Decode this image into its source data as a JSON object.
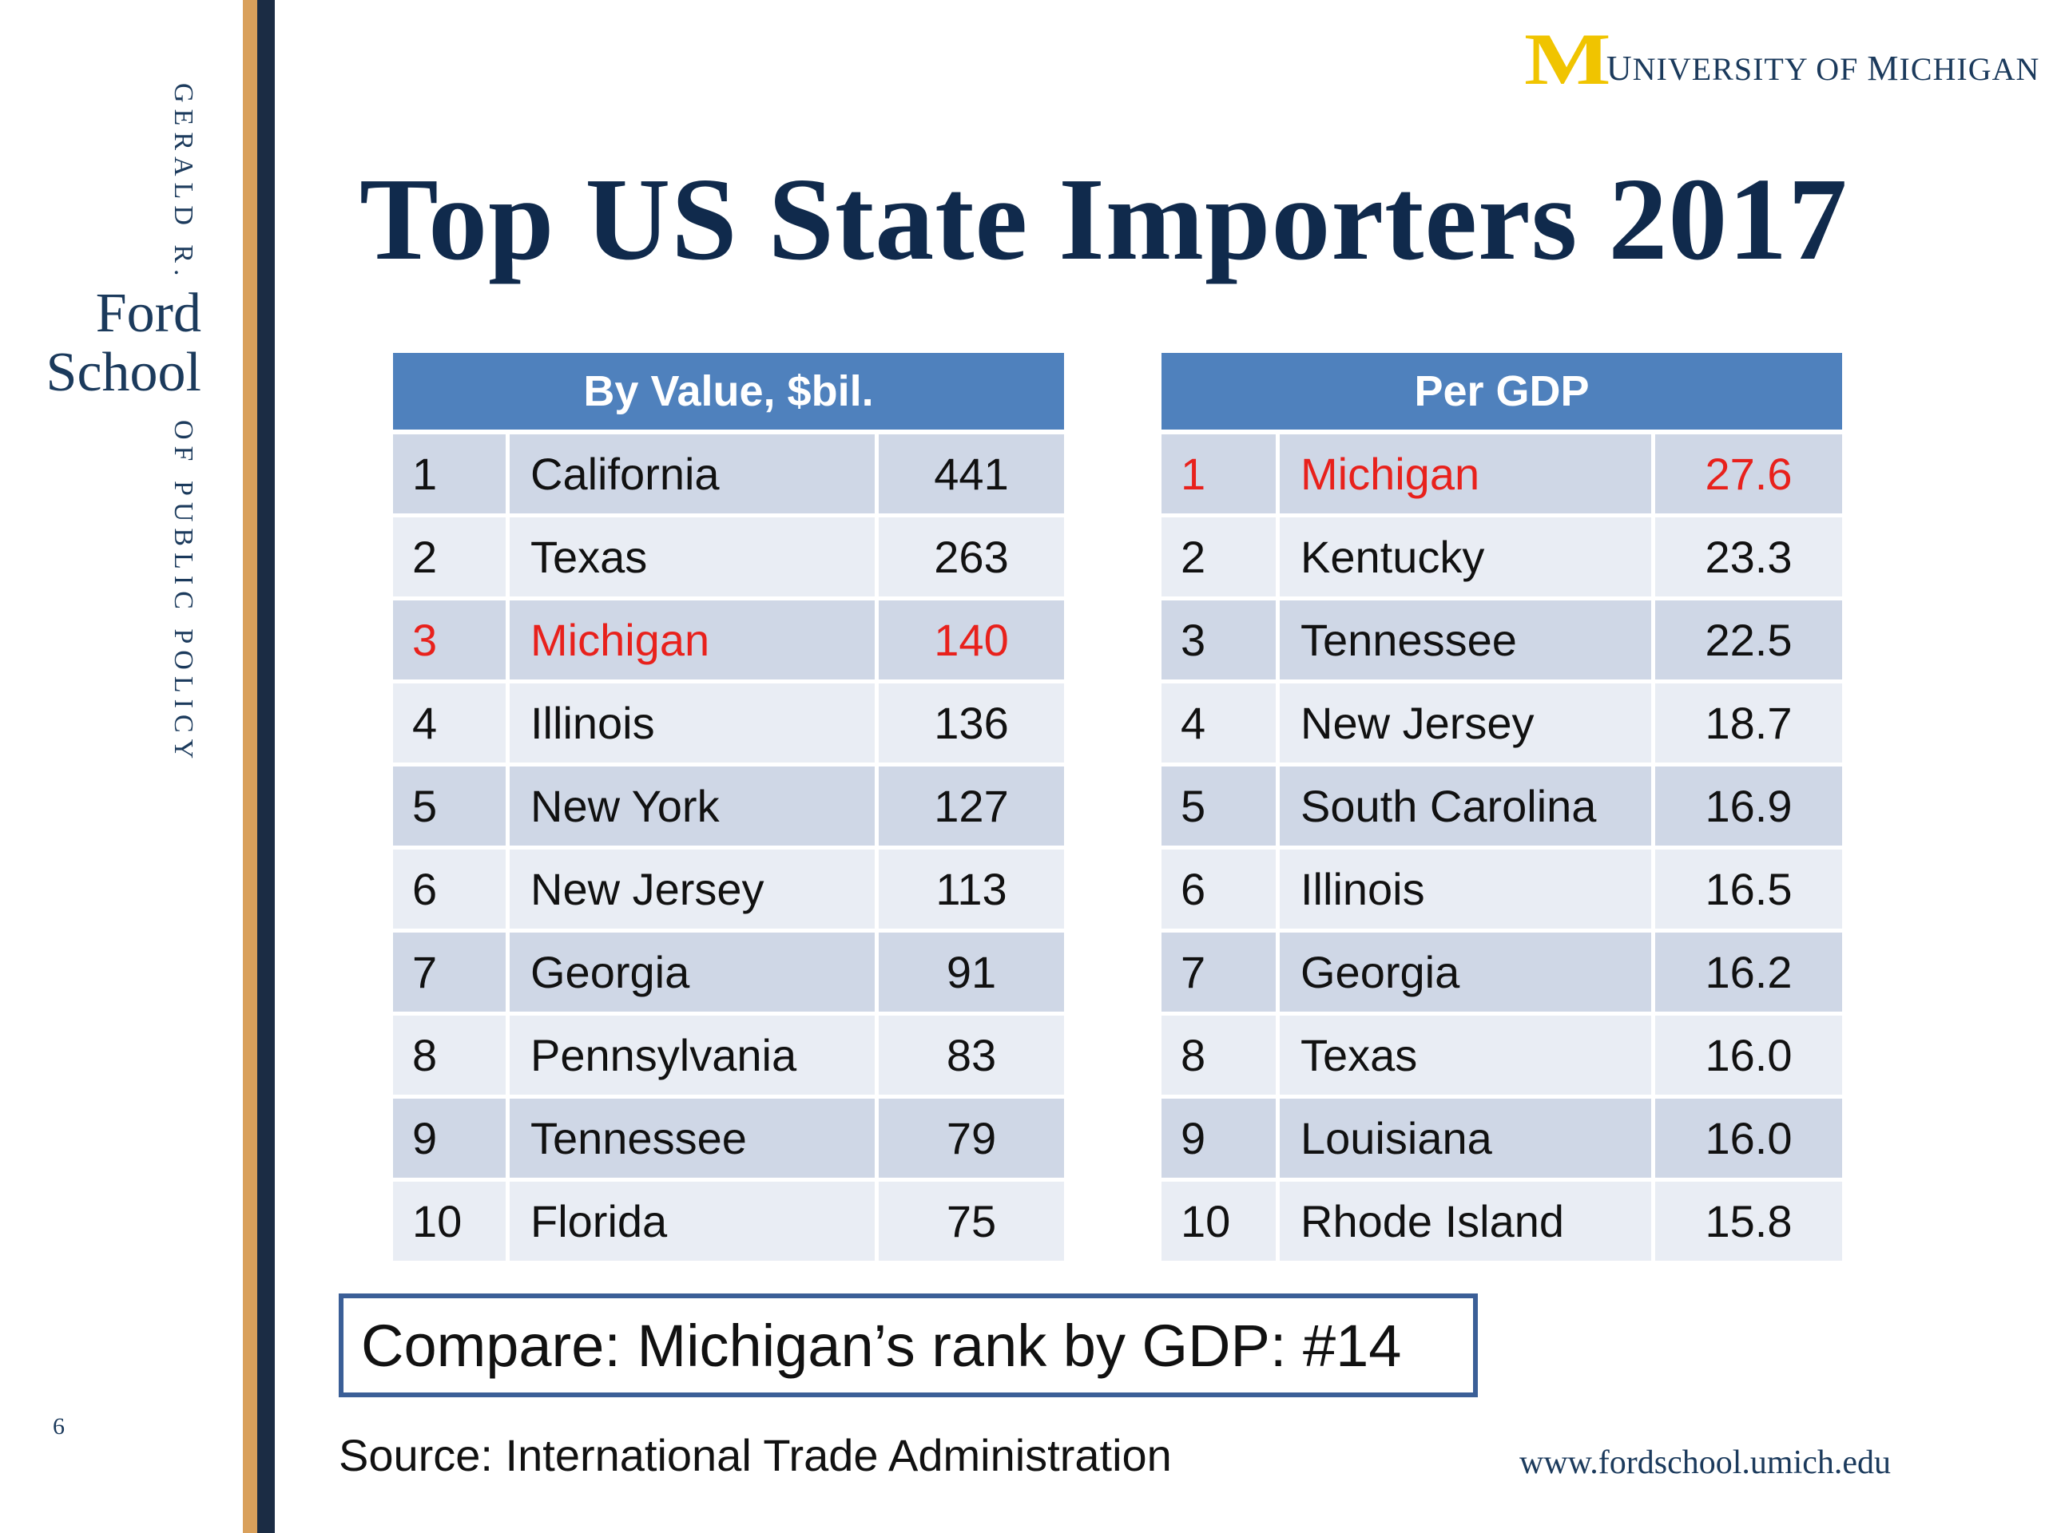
{
  "branding": {
    "vertical_top": "GERALD R.",
    "logo_line1": "Ford",
    "logo_line2": "School",
    "vertical_bottom": "OF PUBLIC POLICY",
    "page_number": "6",
    "university": {
      "m": "M",
      "u": "U",
      "niversity": "NIVERSITY OF ",
      "m2": "M",
      "ichigan": "ICHIGAN"
    },
    "website": "www.fordschool.umich.edu"
  },
  "title": "Top US State Importers 2017",
  "colors": {
    "header_blue": "#4f81bd",
    "highlight_red": "#e8211c",
    "navy": "#1b2c44",
    "gold": "#d9a05b",
    "maize": "#f0c400"
  },
  "tables": {
    "by_value": {
      "header": "By Value, $bil.",
      "rows": [
        {
          "rank": "1",
          "state": "California",
          "value": "441"
        },
        {
          "rank": "2",
          "state": "Texas",
          "value": "263"
        },
        {
          "rank": "3",
          "state": "Michigan",
          "value": "140",
          "highlight": true
        },
        {
          "rank": "4",
          "state": "Illinois",
          "value": "136"
        },
        {
          "rank": "5",
          "state": "New York",
          "value": "127"
        },
        {
          "rank": "6",
          "state": "New Jersey",
          "value": "113"
        },
        {
          "rank": "7",
          "state": "Georgia",
          "value": "91"
        },
        {
          "rank": "8",
          "state": "Pennsylvania",
          "value": "83"
        },
        {
          "rank": "9",
          "state": "Tennessee",
          "value": "79"
        },
        {
          "rank": "10",
          "state": "Florida",
          "value": "75"
        }
      ]
    },
    "per_gdp": {
      "header": "Per GDP",
      "rows": [
        {
          "rank": "1",
          "state": "Michigan",
          "value": "27.6",
          "highlight": true
        },
        {
          "rank": "2",
          "state": "Kentucky",
          "value": "23.3"
        },
        {
          "rank": "3",
          "state": "Tennessee",
          "value": "22.5"
        },
        {
          "rank": "4",
          "state": "New Jersey",
          "value": "18.7"
        },
        {
          "rank": "5",
          "state": "South Carolina",
          "value": "16.9"
        },
        {
          "rank": "6",
          "state": "Illinois",
          "value": "16.5"
        },
        {
          "rank": "7",
          "state": "Georgia",
          "value": "16.2"
        },
        {
          "rank": "8",
          "state": "Texas",
          "value": "16.0"
        },
        {
          "rank": "9",
          "state": "Louisiana",
          "value": "16.0"
        },
        {
          "rank": "10",
          "state": "Rhode Island",
          "value": "15.8"
        }
      ]
    }
  },
  "compare_note": "Compare:  Michigan’s rank by GDP:  #14",
  "source_note": "Source:  International Trade Administration"
}
